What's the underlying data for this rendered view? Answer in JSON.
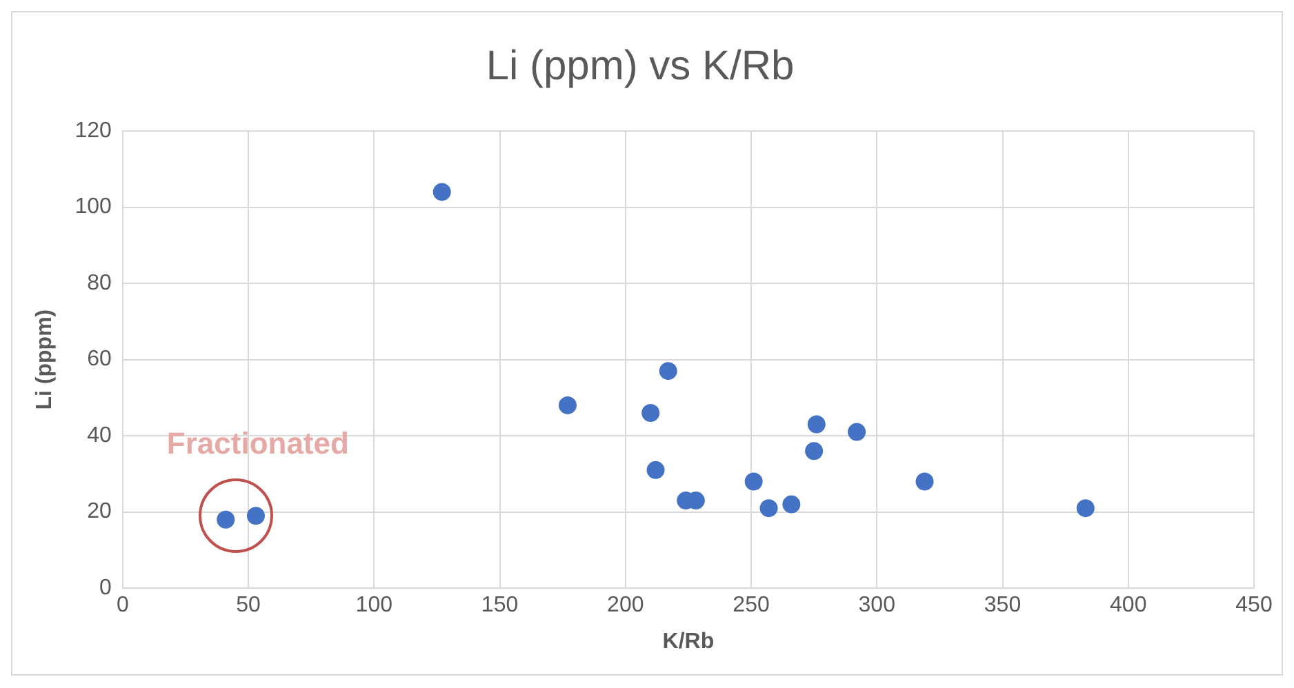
{
  "chart_data": {
    "type": "scatter",
    "title": "Li (ppm) vs K/Rb",
    "xlabel": "K/Rb",
    "ylabel": "Li (pppm)",
    "x": [
      41,
      53,
      127,
      177,
      210,
      217,
      212,
      224,
      228,
      251,
      257,
      266,
      275,
      276,
      292,
      319,
      383
    ],
    "values": [
      18,
      19,
      104,
      48,
      46,
      57,
      31,
      23,
      23,
      28,
      21,
      22,
      36,
      43,
      41,
      28,
      21
    ],
    "color": "#4472c4",
    "xlim": [
      0,
      450
    ],
    "xticks": [
      0,
      50,
      100,
      150,
      200,
      250,
      300,
      350,
      400,
      450
    ],
    "ylim": [
      0,
      120
    ],
    "yticks": [
      0,
      20,
      40,
      60,
      80,
      100,
      120
    ],
    "grid": true,
    "legend": false,
    "marker": "circle",
    "annotations": [
      {
        "text": "Fractionated",
        "x": 45,
        "y": 19
      }
    ]
  }
}
